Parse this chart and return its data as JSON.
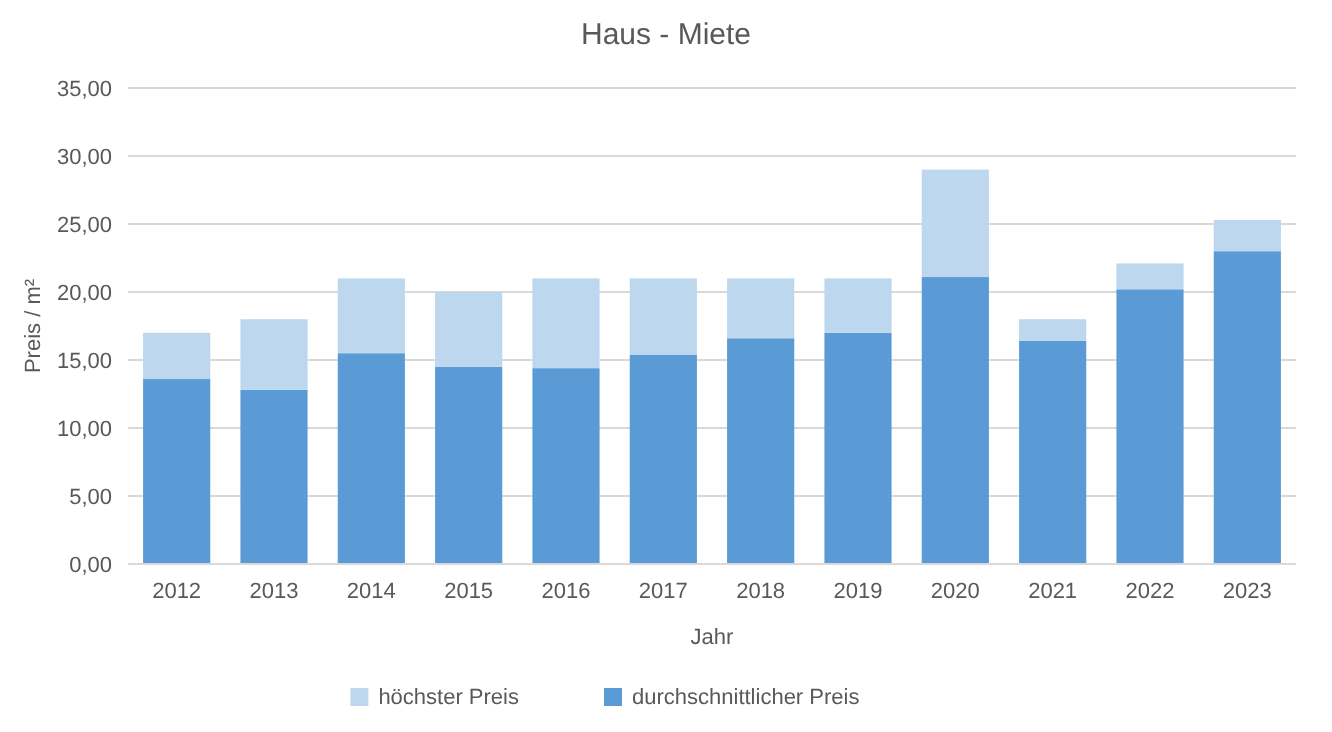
{
  "chart_data": {
    "type": "bar",
    "title": "Haus - Miete",
    "xlabel": "Jahr",
    "ylabel": "Preis / m²",
    "categories": [
      "2012",
      "2013",
      "2014",
      "2015",
      "2016",
      "2017",
      "2018",
      "2019",
      "2020",
      "2021",
      "2022",
      "2023"
    ],
    "series": [
      {
        "name": "durchschnittlicher Preis",
        "color": "#5b9bd5",
        "values": [
          13.6,
          12.8,
          15.5,
          14.5,
          14.4,
          15.4,
          16.6,
          17.0,
          21.1,
          16.4,
          20.2,
          23.0
        ]
      },
      {
        "name": "höchster Preis",
        "color": "#bdd7ee",
        "values": [
          3.4,
          5.2,
          5.5,
          5.5,
          6.6,
          5.6,
          4.4,
          4.0,
          7.9,
          1.6,
          1.9,
          2.3
        ]
      }
    ],
    "stacked": true,
    "ylim": [
      0,
      35
    ],
    "yticks": [
      {
        "value": 0,
        "label": "0,00"
      },
      {
        "value": 5,
        "label": "5,00"
      },
      {
        "value": 10,
        "label": "10,00"
      },
      {
        "value": 15,
        "label": "15,00"
      },
      {
        "value": 20,
        "label": "20,00"
      },
      {
        "value": 25,
        "label": "25,00"
      },
      {
        "value": 30,
        "label": "30,00"
      },
      {
        "value": 35,
        "label": "35,00"
      }
    ],
    "grid": "y",
    "legend": "bottom"
  }
}
